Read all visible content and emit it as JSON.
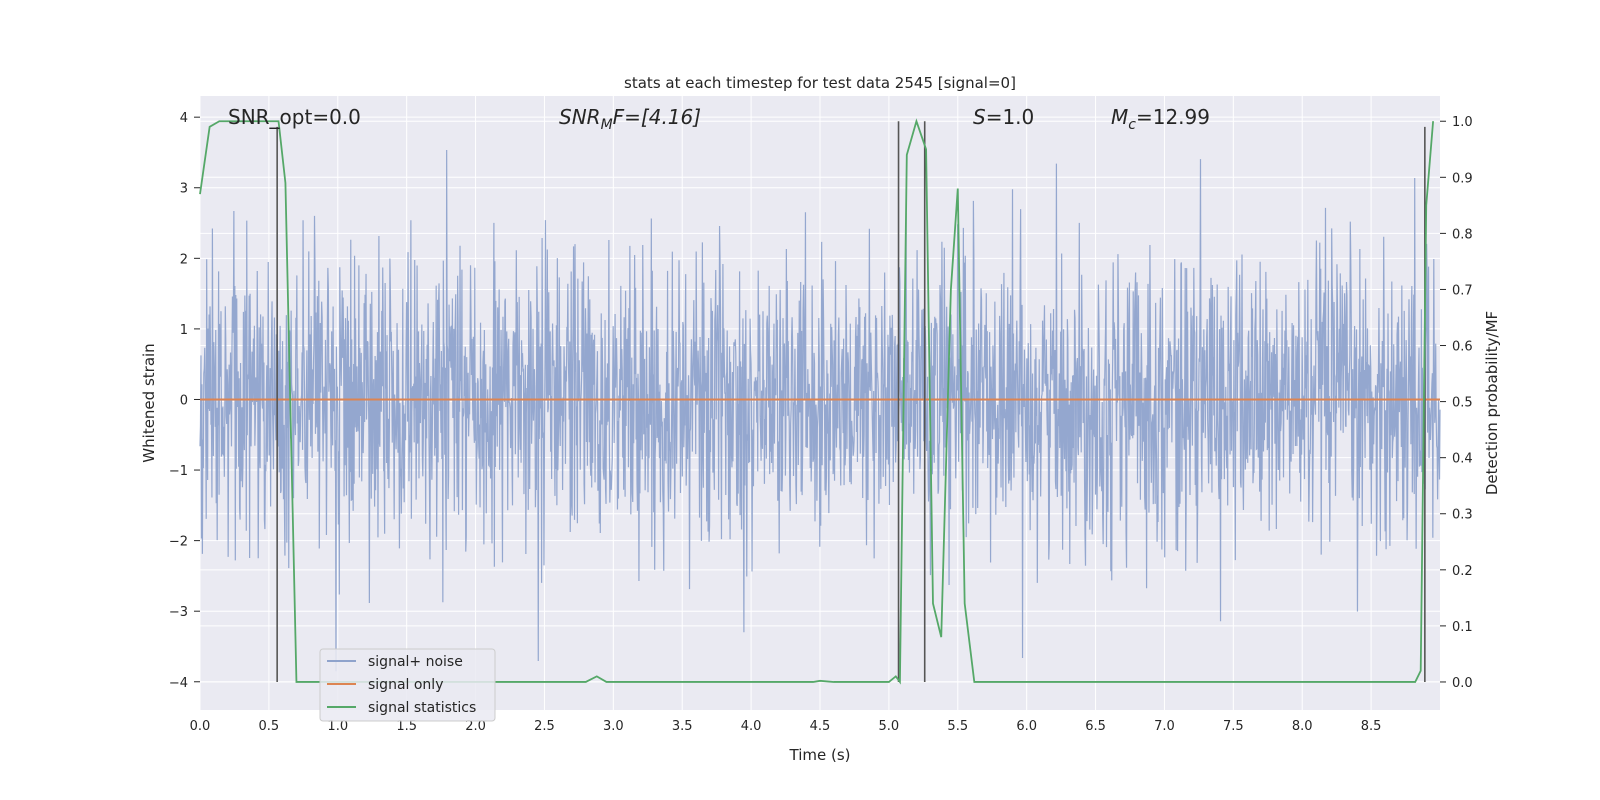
{
  "chart_data": {
    "type": "line",
    "title": "stats at each timestep for test data 2545 [signal=0]",
    "xlabel": "Time (s)",
    "ylabel": "Whitened strain",
    "y2label": "Detection probability/MF",
    "xlim": [
      0.0,
      9.0
    ],
    "ylim": [
      -4.4,
      4.3
    ],
    "y2lim": [
      -0.05,
      1.045
    ],
    "x_ticks": [
      "0.0",
      "0.5",
      "1.0",
      "1.5",
      "2.0",
      "2.5",
      "3.0",
      "3.5",
      "4.0",
      "4.5",
      "5.0",
      "5.5",
      "6.0",
      "6.5",
      "7.0",
      "7.5",
      "8.0",
      "8.5"
    ],
    "y_ticks": [
      "4",
      "3",
      "2",
      "1",
      "0",
      "−1",
      "−2",
      "−3",
      "−4"
    ],
    "y2_ticks": [
      "1.0",
      "0.9",
      "0.8",
      "0.7",
      "0.6",
      "0.5",
      "0.4",
      "0.3",
      "0.2",
      "0.1",
      "0.0"
    ],
    "grid": true,
    "legend_position": "lower-left",
    "colors": {
      "noise": "#8fa3cc",
      "signal": "#dd8452",
      "stats": "#55a868",
      "vline": "#555555",
      "background": "#eaeaf2",
      "grid": "#ffffff"
    },
    "annotations": {
      "snr_opt": "SNR_opt=0.0",
      "snr_mf_base": "SNR",
      "snr_mf_sub": "M",
      "snr_mf_tail": "F=[4.16]",
      "s_name": "S",
      "s_value": "=1.0",
      "mc_base": "M",
      "mc_sub": "c",
      "mc_value": "=12.99"
    },
    "series": [
      {
        "name": "signal+ noise",
        "axis": "left",
        "description": "whitened strain noise, amplitude mostly within ±2.5, peaks to about +3.9 / -4.0",
        "envelope_max": 3.9,
        "envelope_min": -4.0,
        "typical_sigma": 1.0
      },
      {
        "name": "signal only",
        "axis": "left",
        "x": [
          0.0,
          9.0
        ],
        "y": [
          0.0,
          0.0
        ]
      },
      {
        "name": "signal statistics",
        "axis": "right",
        "x": [
          0.0,
          0.07,
          0.14,
          0.2,
          0.3,
          0.4,
          0.5,
          0.57,
          0.62,
          0.7,
          1.0,
          1.5,
          2.0,
          2.5,
          2.8,
          2.88,
          2.95,
          3.2,
          4.0,
          4.45,
          4.5,
          4.6,
          5.0,
          5.05,
          5.08,
          5.13,
          5.2,
          5.27,
          5.32,
          5.38,
          5.45,
          5.5,
          5.55,
          5.62,
          5.7,
          6.5,
          7.5,
          8.5,
          8.82,
          8.86,
          8.9,
          8.95
        ],
        "y": [
          0.87,
          0.99,
          1.0,
          1.0,
          1.0,
          1.0,
          1.0,
          1.0,
          0.89,
          0.0,
          0.0,
          0.0,
          0.0,
          0.0,
          0.0,
          0.01,
          0.0,
          0.0,
          0.0,
          0.0,
          0.002,
          0.0,
          0.0,
          0.01,
          0.0,
          0.94,
          1.0,
          0.95,
          0.14,
          0.08,
          0.7,
          0.88,
          0.14,
          0.0,
          0.0,
          0.0,
          0.0,
          0.0,
          0.0,
          0.02,
          0.85,
          1.0
        ]
      }
    ],
    "vlines": [
      {
        "x": 0.56,
        "y_from": 0.0,
        "y_to": 0.99
      },
      {
        "x": 5.07,
        "y_from": 0.0,
        "y_to": 1.0
      },
      {
        "x": 5.26,
        "y_from": 0.0,
        "y_to": 1.0
      },
      {
        "x": 8.89,
        "y_from": 0.0,
        "y_to": 0.99
      }
    ]
  }
}
